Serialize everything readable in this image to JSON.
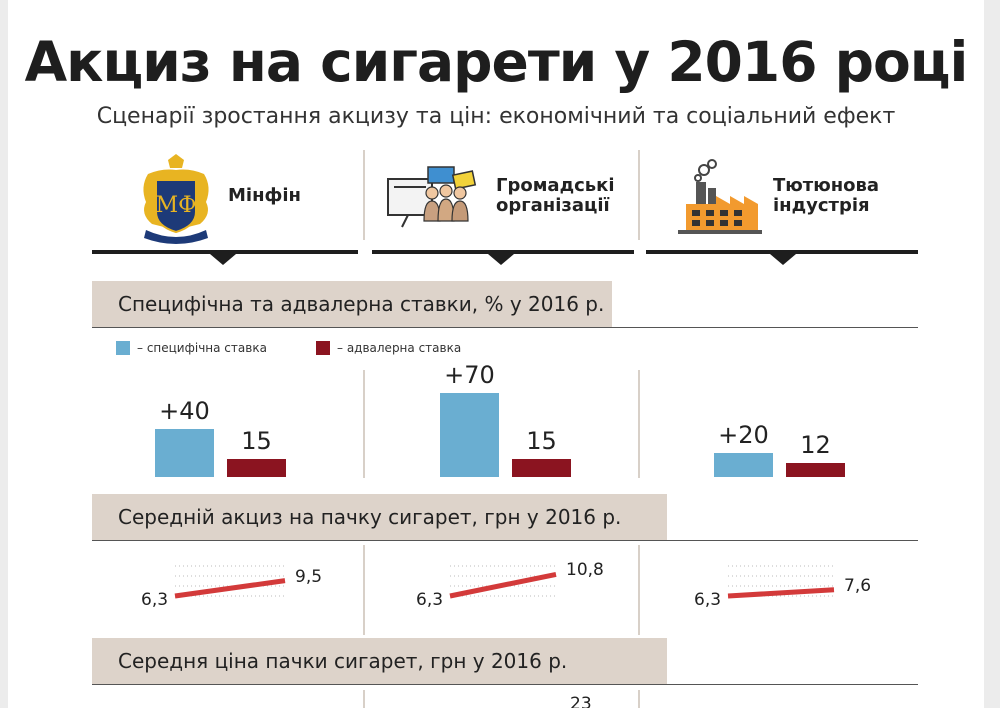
{
  "title": "Акциз на сигарети у 2016 році",
  "subtitle": "Сценарії зростання акцизу та цін: економічний та соціальний ефект",
  "columns": [
    {
      "name": "Мінфін",
      "icon": "minfin-emblem-icon"
    },
    {
      "name": "Громадські організації",
      "icon": "protest-group-icon"
    },
    {
      "name": "Тютюнова індустрія",
      "icon": "factory-icon"
    }
  ],
  "legend": {
    "specific": "– специфічна ставка",
    "advalorem": "– адвалерна ставка"
  },
  "colors": {
    "specific": "#6aaed1",
    "advalorem": "#8b1420",
    "line": "#d33a3a"
  },
  "chart_data": [
    {
      "type": "bar",
      "title": "Специфічна та адвалерна ставки, % у 2016 р.",
      "categories": [
        "Мінфін",
        "Громадські організації",
        "Тютюнова індустрія"
      ],
      "series": [
        {
          "name": "– специфічна ставка",
          "values": [
            40,
            70,
            20
          ],
          "labels": [
            "+40",
            "+70",
            "+20"
          ]
        },
        {
          "name": "– адвалерна ставка",
          "values": [
            15,
            15,
            12
          ],
          "labels": [
            "15",
            "15",
            "12"
          ]
        }
      ]
    },
    {
      "type": "line",
      "title": "Середній акциз на пачку сигарет, грн у 2016 р.",
      "categories": [
        "Мінфін",
        "Громадські організації",
        "Тютюнова індустрія"
      ],
      "start": [
        6.3,
        6.3,
        6.3
      ],
      "end": [
        9.5,
        10.8,
        7.6
      ],
      "start_labels": [
        "6,3",
        "6,3",
        "6,3"
      ],
      "end_labels": [
        "9,5",
        "10,8",
        "7,6"
      ]
    },
    {
      "type": "line",
      "title": "Середня ціна пачки сигарет, грн у 2016 р.",
      "partial_label": "23"
    }
  ]
}
